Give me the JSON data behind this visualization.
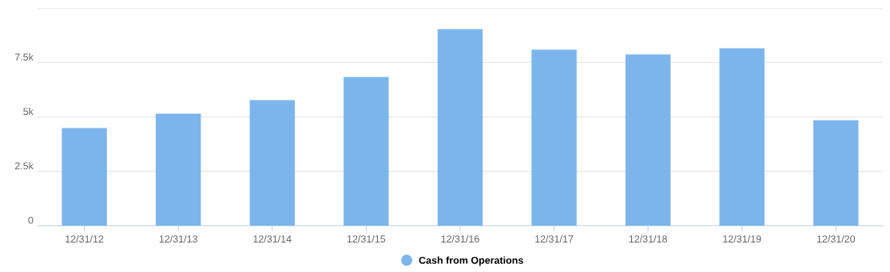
{
  "chart_data": {
    "type": "bar",
    "categories": [
      "12/31/12",
      "12/31/13",
      "12/31/14",
      "12/31/15",
      "12/31/16",
      "12/31/17",
      "12/31/18",
      "12/31/19",
      "12/31/20"
    ],
    "series": [
      {
        "name": "Cash from Operations",
        "color": "#7cb5ec",
        "values": [
          4490,
          5150,
          5770,
          6840,
          9040,
          8090,
          7870,
          8160,
          4850
        ]
      }
    ],
    "ylim": [
      0,
      10000
    ],
    "yticks": [
      {
        "value": 0,
        "label": "0"
      },
      {
        "value": 2500,
        "label": "2.5k"
      },
      {
        "value": 5000,
        "label": "5k"
      },
      {
        "value": 7500,
        "label": "7.5k"
      },
      {
        "value": 10000,
        "label": null
      }
    ],
    "grid": "y",
    "legend": "bottom"
  }
}
